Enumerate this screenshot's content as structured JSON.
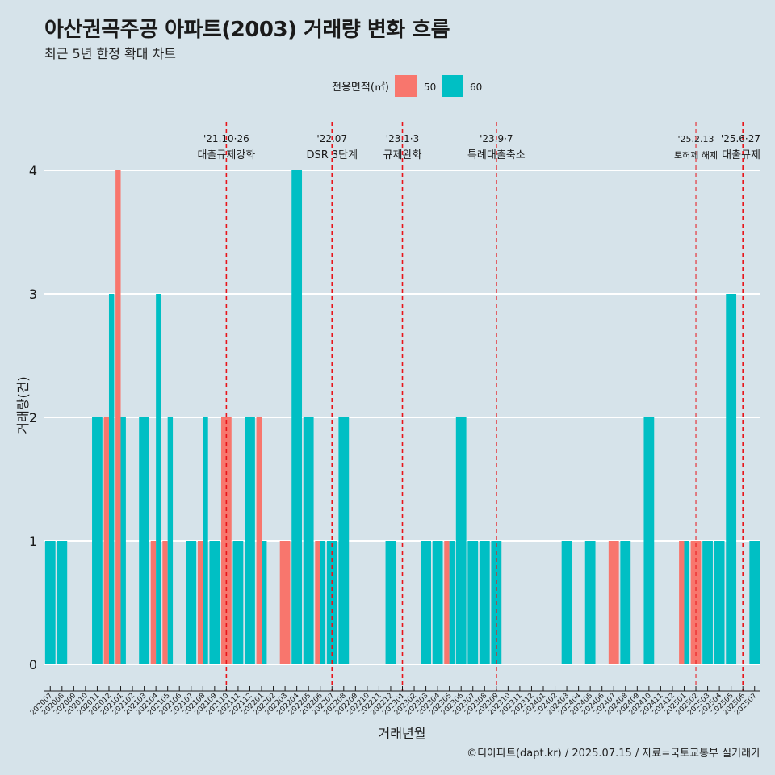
{
  "title": "아산권곡주공 아파트(2003) 거래량 변화 흐름",
  "subtitle": "최근 5년 한정 확대 차트",
  "caption": "©디아파트(dapt.kr) / 2025.07.15 / 자료=국토교통부 실거래가",
  "colors": {
    "background": "#d6e3ea",
    "series_50": "#f8766d",
    "series_60": "#00bfc4",
    "event_line": "#e8141a",
    "grid": "#ffffff"
  },
  "chart_data": {
    "type": "bar",
    "xlabel": "거래년월",
    "ylabel": "거래량(건)",
    "ylim": [
      0,
      4
    ],
    "yticks": [
      "0",
      "1",
      "2",
      "3",
      "4"
    ],
    "grid": true,
    "legend": {
      "title": "전용면적(㎡)",
      "position": "top",
      "entries": [
        "50",
        "60"
      ]
    },
    "categories": [
      "202007",
      "202008",
      "202009",
      "202010",
      "202011",
      "202012",
      "202101",
      "202102",
      "202103",
      "202104",
      "202105",
      "202106",
      "202107",
      "202108",
      "202109",
      "202110",
      "202111",
      "202112",
      "202201",
      "202202",
      "202203",
      "202204",
      "202205",
      "202206",
      "202207",
      "202208",
      "202209",
      "202210",
      "202211",
      "202212",
      "202301",
      "202302",
      "202303",
      "202304",
      "202305",
      "202306",
      "202307",
      "202308",
      "202309",
      "202310",
      "202311",
      "202312",
      "202401",
      "202402",
      "202403",
      "202404",
      "202405",
      "202406",
      "202407",
      "202408",
      "202409",
      "202410",
      "202411",
      "202412",
      "202501",
      "202502",
      "202503",
      "202504",
      "202505",
      "202506",
      "202507"
    ],
    "series": [
      {
        "name": "50",
        "values": [
          0,
          0,
          0,
          0,
          0,
          2,
          4,
          0,
          0,
          1,
          1,
          0,
          0,
          1,
          0,
          2,
          0,
          0,
          2,
          0,
          1,
          0,
          0,
          1,
          0,
          0,
          0,
          0,
          0,
          0,
          0,
          0,
          0,
          0,
          1,
          0,
          0,
          0,
          0,
          0,
          0,
          0,
          0,
          0,
          0,
          0,
          0,
          0,
          1,
          0,
          0,
          0,
          0,
          0,
          1,
          1,
          0,
          0,
          0,
          0,
          0
        ]
      },
      {
        "name": "60",
        "values": [
          1,
          1,
          0,
          0,
          2,
          3,
          2,
          0,
          2,
          3,
          2,
          0,
          1,
          2,
          1,
          0,
          1,
          2,
          1,
          0,
          0,
          4,
          2,
          1,
          1,
          2,
          0,
          0,
          0,
          1,
          0,
          0,
          1,
          1,
          1,
          2,
          1,
          1,
          1,
          0,
          0,
          0,
          0,
          0,
          1,
          0,
          1,
          0,
          0,
          1,
          0,
          2,
          0,
          0,
          1,
          0,
          1,
          1,
          3,
          0,
          1
        ]
      }
    ],
    "annotations": [
      {
        "category": "202110",
        "date": "'21.10·26",
        "label": "대출규제강화"
      },
      {
        "category": "202207",
        "date": "'22.07",
        "label": "DSR 3단계"
      },
      {
        "category": "202301",
        "date": "'23.1·3",
        "label": "규제완화"
      },
      {
        "category": "202309",
        "date": "'23.9·7",
        "label": "특례대출축소"
      },
      {
        "category": "202502",
        "date": "'25.2.13",
        "label": "토허제 해제"
      },
      {
        "category": "202506",
        "date": "'25.6·27",
        "label": "대출규제"
      }
    ]
  }
}
